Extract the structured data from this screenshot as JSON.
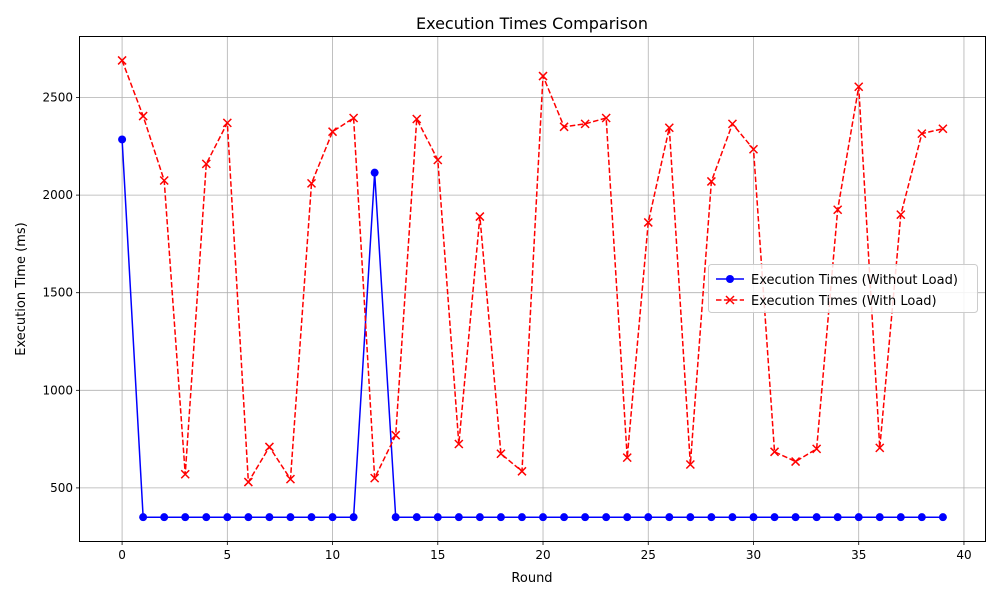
{
  "chart_data": {
    "type": "line",
    "title": "Execution Times Comparison",
    "xlabel": "Round",
    "ylabel": "Execution Time (ms)",
    "xlim": [
      -2,
      41
    ],
    "ylim": [
      228,
      2810
    ],
    "xticks": [
      0,
      5,
      10,
      15,
      20,
      25,
      30,
      35,
      40
    ],
    "yticks": [
      500,
      1000,
      1500,
      2000,
      2500
    ],
    "grid": true,
    "legend_position": "center-right",
    "x": [
      0,
      1,
      2,
      3,
      4,
      5,
      6,
      7,
      8,
      9,
      10,
      11,
      12,
      13,
      14,
      15,
      16,
      17,
      18,
      19,
      20,
      21,
      22,
      23,
      24,
      25,
      26,
      27,
      28,
      29,
      30,
      31,
      32,
      33,
      34,
      35,
      36,
      37,
      38,
      39
    ],
    "series": [
      {
        "name": "Execution Times (Without Load)",
        "color": "#0000ff",
        "line_style": "solid",
        "marker": "circle",
        "values": [
          2285,
          350,
          350,
          350,
          350,
          350,
          350,
          350,
          350,
          350,
          350,
          350,
          2115,
          350,
          350,
          350,
          350,
          350,
          350,
          350,
          350,
          350,
          350,
          350,
          350,
          350,
          350,
          350,
          350,
          350,
          350,
          350,
          350,
          350,
          350,
          350,
          350,
          350,
          350,
          350
        ]
      },
      {
        "name": "Execution Times (With Load)",
        "color": "#ff0000",
        "line_style": "dashed",
        "marker": "x",
        "values": [
          2690,
          2405,
          2075,
          570,
          2160,
          2370,
          530,
          710,
          545,
          2060,
          2325,
          2395,
          550,
          770,
          2390,
          2180,
          725,
          1890,
          675,
          585,
          2610,
          2350,
          2365,
          2395,
          655,
          1860,
          2345,
          620,
          2070,
          2365,
          2235,
          685,
          635,
          700,
          1925,
          2555,
          705,
          1900,
          2315,
          2340
        ]
      }
    ]
  }
}
